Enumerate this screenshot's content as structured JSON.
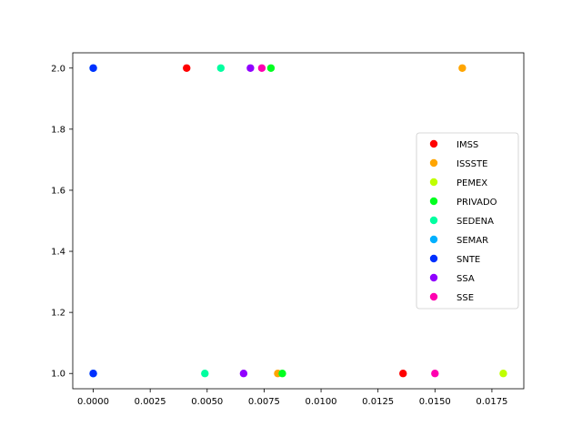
{
  "chart_data": {
    "type": "scatter",
    "title": "",
    "xlabel": "",
    "ylabel": "",
    "xlim": [
      -0.0009,
      0.0189
    ],
    "ylim": [
      0.95,
      2.05
    ],
    "xticks": [
      0.0,
      0.0025,
      0.005,
      0.0075,
      0.01,
      0.0125,
      0.015,
      0.0175
    ],
    "xtick_labels": [
      "0.0000",
      "0.0025",
      "0.0050",
      "0.0075",
      "0.0100",
      "0.0125",
      "0.0150",
      "0.0175"
    ],
    "yticks": [
      1.0,
      1.2,
      1.4,
      1.6,
      1.8,
      2.0
    ],
    "ytick_labels": [
      "1.0",
      "1.2",
      "1.4",
      "1.6",
      "1.8",
      "2.0"
    ],
    "grid": false,
    "legend_position": "center-right",
    "series": [
      {
        "name": "IMSS",
        "color": "#ff0000",
        "points": [
          [
            0.0041,
            2.0
          ],
          [
            0.0136,
            1.0
          ]
        ]
      },
      {
        "name": "ISSSTE",
        "color": "#ffa500",
        "points": [
          [
            0.0162,
            2.0
          ],
          [
            0.0081,
            1.0
          ]
        ]
      },
      {
        "name": "PEMEX",
        "color": "#c0ff00",
        "points": [
          [
            0.018,
            1.0
          ]
        ]
      },
      {
        "name": "PRIVADO",
        "color": "#00ff20",
        "points": [
          [
            0.0078,
            2.0
          ],
          [
            0.0083,
            1.0
          ]
        ]
      },
      {
        "name": "SEDENA",
        "color": "#00ffa0",
        "points": [
          [
            0.0056,
            2.0
          ],
          [
            0.0049,
            1.0
          ]
        ]
      },
      {
        "name": "SEMAR",
        "color": "#00b0ff",
        "points": [
          [
            0.0,
            2.0
          ],
          [
            0.0,
            1.0
          ]
        ]
      },
      {
        "name": "SNTE",
        "color": "#0030ff",
        "points": [
          [
            0.0,
            2.0
          ],
          [
            0.0,
            1.0
          ]
        ]
      },
      {
        "name": "SSA",
        "color": "#9000ff",
        "points": [
          [
            0.0069,
            2.0
          ],
          [
            0.0066,
            1.0
          ]
        ]
      },
      {
        "name": "SSE",
        "color": "#ff00b0",
        "points": [
          [
            0.0074,
            2.0
          ],
          [
            0.015,
            1.0
          ]
        ]
      }
    ]
  }
}
